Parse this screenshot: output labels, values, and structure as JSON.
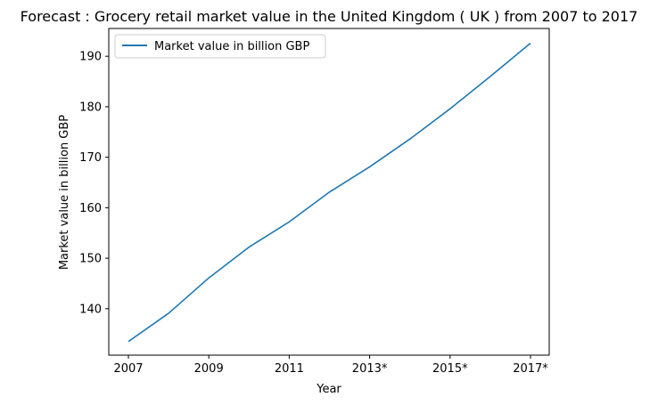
{
  "chart_data": {
    "type": "line",
    "title": "Forecast : Grocery retail market value in the United Kingdom ( UK ) from 2007 to 2017",
    "xlabel": "Year",
    "ylabel": "Market value in billion GBP",
    "categories": [
      "2007",
      "2008",
      "2009",
      "2010",
      "2011",
      "2012",
      "2013*",
      "2014*",
      "2015*",
      "2016*",
      "2017*"
    ],
    "x_tick_labels": [
      "2007",
      "2009",
      "2011",
      "2013*",
      "2015*",
      "2017*"
    ],
    "y_ticks": [
      140,
      150,
      160,
      170,
      180,
      190
    ],
    "ylim": [
      130.8,
      195.5
    ],
    "grid": false,
    "legend_position": "top-left",
    "series": [
      {
        "name": "Market value in billion GBP",
        "color": "#1f77b4",
        "values": [
          133.5,
          139.1,
          146.1,
          152.2,
          157.2,
          163.1,
          168.1,
          173.6,
          179.6,
          186.0,
          192.6
        ]
      }
    ]
  }
}
